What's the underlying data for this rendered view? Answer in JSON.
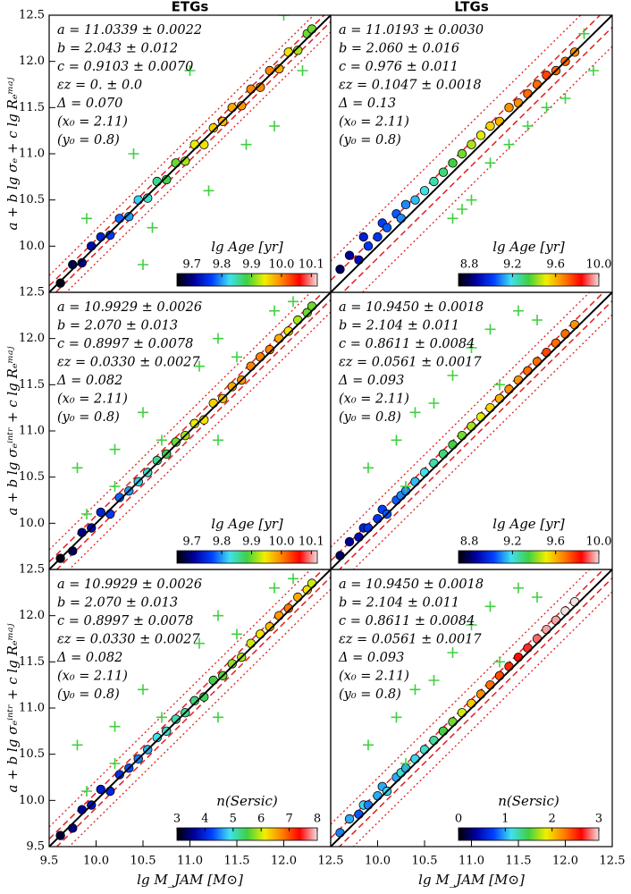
{
  "colormap": [
    "#000000",
    "#0000a0",
    "#0040ff",
    "#40e0f0",
    "#40d040",
    "#f0f000",
    "#ff8000",
    "#ff0000",
    "#f0e0e0"
  ],
  "chart_data": [
    {
      "type": "scatter",
      "title": "ETGs",
      "ylabel": "a + b lg σₑ + c lg Rₑᵐᵃʲ",
      "annotations": [
        "a = 11.0339 ± 0.0022",
        "b = 2.043 ± 0.012",
        "c = 0.9103 ± 0.0070",
        "εz = 0. ± 0.0",
        "Δ = 0.070",
        "(x₀ = 2.11)",
        "(y₀ = 0.8)"
      ],
      "delta": 0.07,
      "xlim": [
        9.5,
        12.5
      ],
      "ylim": [
        9.5,
        12.5
      ],
      "yticks": [
        {
          "value": 10,
          "label": "10.0"
        },
        10.5,
        {
          "value": 11,
          "label": "11.0"
        },
        11.5,
        {
          "value": 12,
          "label": "12.0"
        },
        12.5
      ],
      "x": [
        9.62,
        9.75,
        9.85,
        9.95,
        10.05,
        10.15,
        10.25,
        10.35,
        10.45,
        10.55,
        10.65,
        10.75,
        10.85,
        10.95,
        11.05,
        11.15,
        11.25,
        11.35,
        11.45,
        11.55,
        11.65,
        11.75,
        11.85,
        11.95,
        12.05,
        12.15,
        12.25,
        12.3
      ],
      "y": [
        9.6,
        9.8,
        9.82,
        10.0,
        10.1,
        10.12,
        10.3,
        10.32,
        10.5,
        10.52,
        10.7,
        10.72,
        10.9,
        10.92,
        11.1,
        11.1,
        11.28,
        11.35,
        11.5,
        11.52,
        11.7,
        11.72,
        11.9,
        11.92,
        12.1,
        12.12,
        12.3,
        12.35
      ],
      "c": [
        9.66,
        9.68,
        9.7,
        9.72,
        9.74,
        9.76,
        9.78,
        9.8,
        9.82,
        9.84,
        9.86,
        9.88,
        9.9,
        9.92,
        9.94,
        9.95,
        9.96,
        9.97,
        9.98,
        9.99,
        10.0,
        10.0,
        10.0,
        9.98,
        9.95,
        9.92,
        9.9,
        9.9
      ],
      "outliers_x": [
        10.4,
        10.6,
        11.0,
        11.2,
        11.6,
        11.9,
        12.2,
        10.5,
        9.9,
        12.0
      ],
      "outliers_y": [
        11.0,
        10.2,
        11.9,
        10.6,
        11.1,
        11.3,
        11.9,
        9.8,
        10.3,
        12.5
      ],
      "clabel": "lg Age [yr]",
      "clim": [
        9.65,
        10.12
      ],
      "cticks": [
        9.7,
        9.8,
        9.9,
        {
          "value": 10,
          "label": "10.0"
        },
        10.1
      ]
    },
    {
      "type": "scatter",
      "title": "LTGs",
      "annotations": [
        "a = 11.0193 ± 0.0030",
        "b = 2.060 ± 0.016",
        "c = 0.976 ± 0.011",
        "εz = 0.1047 ± 0.0018",
        "Δ = 0.13",
        "(x₀ = 2.11)",
        "(y₀ = 0.8)"
      ],
      "delta": 0.13,
      "xlim": [
        9.5,
        12.5
      ],
      "ylim": [
        9.5,
        12.5
      ],
      "x": [
        9.6,
        9.7,
        9.8,
        9.85,
        9.9,
        10.0,
        10.05,
        10.1,
        10.2,
        10.25,
        10.3,
        10.4,
        10.5,
        10.6,
        10.7,
        10.8,
        10.9,
        11.0,
        11.1,
        11.2,
        11.3,
        11.4,
        11.5,
        11.6,
        11.7,
        11.8,
        11.9,
        12.0,
        12.1
      ],
      "y": [
        9.75,
        9.9,
        9.85,
        10.1,
        10.0,
        10.1,
        10.25,
        10.2,
        10.35,
        10.3,
        10.45,
        10.5,
        10.6,
        10.7,
        10.8,
        10.9,
        11.0,
        11.1,
        11.2,
        11.3,
        11.35,
        11.5,
        11.55,
        11.65,
        11.75,
        11.85,
        11.9,
        12.0,
        12.1
      ],
      "c": [
        8.8,
        8.85,
        8.9,
        8.95,
        9.0,
        9.0,
        9.02,
        9.05,
        9.05,
        9.1,
        9.1,
        9.15,
        9.2,
        9.25,
        9.3,
        9.35,
        9.4,
        9.45,
        9.5,
        9.55,
        9.6,
        9.65,
        9.65,
        9.7,
        9.7,
        9.75,
        9.7,
        9.7,
        9.65
      ],
      "outliers_x": [
        10.8,
        11.0,
        11.2,
        11.4,
        11.6,
        11.8,
        12.0,
        12.3,
        12.2,
        10.9
      ],
      "outliers_y": [
        10.3,
        10.5,
        10.9,
        11.1,
        11.3,
        11.5,
        11.6,
        11.9,
        12.3,
        10.4
      ],
      "clabel": "lg Age [yr]",
      "clim": [
        8.7,
        10.0
      ],
      "cticks": [
        8.8,
        9.2,
        9.6,
        {
          "value": 10,
          "label": "10.0"
        }
      ]
    },
    {
      "type": "scatter",
      "ylabel": "a + b lg σₑⁱⁿᵗʳ + c lg Rₑᵐᵃʲ",
      "annotations": [
        "a = 10.9929 ± 0.0026",
        "b = 2.070 ± 0.013",
        "c = 0.8997 ± 0.0078",
        "εz = 0.0330 ± 0.0027",
        "Δ = 0.082",
        "(x₀ = 2.11)",
        "(y₀ = 0.8)"
      ],
      "delta": 0.082,
      "xlim": [
        9.5,
        12.5
      ],
      "ylim": [
        9.5,
        12.5
      ],
      "yticks": [
        {
          "value": 10,
          "label": "10.0"
        },
        10.5,
        {
          "value": 11,
          "label": "11.0"
        },
        11.5,
        {
          "value": 12,
          "label": "12.0"
        },
        12.5
      ],
      "x": [
        9.62,
        9.75,
        9.85,
        9.95,
        10.05,
        10.15,
        10.25,
        10.35,
        10.45,
        10.55,
        10.65,
        10.75,
        10.85,
        10.95,
        11.05,
        11.15,
        11.25,
        11.35,
        11.45,
        11.55,
        11.65,
        11.75,
        11.85,
        11.95,
        12.05,
        12.15,
        12.25,
        12.3
      ],
      "y": [
        9.62,
        9.7,
        9.9,
        9.95,
        10.12,
        10.1,
        10.28,
        10.35,
        10.45,
        10.55,
        10.68,
        10.75,
        10.88,
        10.95,
        11.08,
        11.12,
        11.3,
        11.35,
        11.48,
        11.55,
        11.7,
        11.8,
        11.88,
        12.0,
        12.08,
        12.2,
        12.28,
        12.35
      ],
      "c": [
        9.66,
        9.68,
        9.7,
        9.72,
        9.74,
        9.76,
        9.78,
        9.8,
        9.82,
        9.84,
        9.86,
        9.88,
        9.9,
        9.92,
        9.94,
        9.95,
        9.96,
        9.97,
        9.98,
        9.99,
        10.0,
        10.0,
        10.0,
        9.98,
        9.95,
        9.92,
        9.9,
        9.9
      ],
      "outliers_x": [
        9.9,
        10.2,
        10.5,
        10.7,
        11.1,
        11.3,
        11.5,
        10.2,
        11.9,
        9.8,
        11.3,
        12.1
      ],
      "outliers_y": [
        10.1,
        10.8,
        11.2,
        10.9,
        11.7,
        12.0,
        11.8,
        10.4,
        12.3,
        10.6,
        10.9,
        12.4
      ],
      "clabel": "lg Age [yr]",
      "clim": [
        9.65,
        10.12
      ],
      "cticks": [
        9.7,
        9.8,
        9.9,
        {
          "value": 10,
          "label": "10.0"
        },
        10.1
      ]
    },
    {
      "type": "scatter",
      "annotations": [
        "a = 10.9450 ± 0.0018",
        "b = 2.104 ± 0.011",
        "c = 0.8611 ± 0.0084",
        "εz = 0.0561 ± 0.0017",
        "Δ = 0.093",
        "(x₀ = 2.11)",
        "(y₀ = 0.8)"
      ],
      "delta": 0.093,
      "xlim": [
        9.5,
        12.5
      ],
      "ylim": [
        9.5,
        12.5
      ],
      "x": [
        9.6,
        9.7,
        9.8,
        9.85,
        9.9,
        10.0,
        10.05,
        10.1,
        10.2,
        10.25,
        10.3,
        10.4,
        10.5,
        10.6,
        10.7,
        10.8,
        10.9,
        11.0,
        11.1,
        11.2,
        11.3,
        11.4,
        11.5,
        11.6,
        11.7,
        11.8,
        11.9,
        12.0,
        12.1
      ],
      "y": [
        9.65,
        9.8,
        9.85,
        9.95,
        9.95,
        10.05,
        10.15,
        10.1,
        10.25,
        10.3,
        10.35,
        10.45,
        10.55,
        10.65,
        10.75,
        10.85,
        10.95,
        11.05,
        11.15,
        11.25,
        11.35,
        11.45,
        11.55,
        11.65,
        11.75,
        11.85,
        11.95,
        12.05,
        12.15
      ],
      "c": [
        8.8,
        8.85,
        8.9,
        8.95,
        9.0,
        9.0,
        9.02,
        9.05,
        9.05,
        9.1,
        9.1,
        9.15,
        9.2,
        9.25,
        9.3,
        9.35,
        9.4,
        9.45,
        9.5,
        9.55,
        9.6,
        9.65,
        9.65,
        9.7,
        9.7,
        9.75,
        9.7,
        9.7,
        9.65
      ],
      "outliers_x": [
        10.2,
        10.4,
        10.6,
        10.8,
        11.0,
        11.2,
        11.3,
        11.5,
        10.3,
        11.7,
        9.9
      ],
      "outliers_y": [
        10.9,
        11.2,
        11.3,
        11.6,
        11.9,
        12.1,
        11.5,
        12.3,
        10.4,
        12.2,
        10.6
      ],
      "clabel": "lg Age [yr]",
      "clim": [
        8.7,
        10.0
      ],
      "cticks": [
        8.8,
        9.2,
        9.6,
        {
          "value": 10,
          "label": "10.0"
        }
      ]
    },
    {
      "type": "scatter",
      "ylabel": "a + b lg σₑⁱⁿᵗʳ + c lg Rₑᵐᵃʲ",
      "xlabel": "lg M_JAM [M⊙]",
      "annotations": [
        "a = 10.9929 ± 0.0026",
        "b = 2.070 ± 0.013",
        "c = 0.8997 ± 0.0078",
        "εz = 0.0330 ± 0.0027",
        "Δ = 0.082",
        "(x₀ = 2.11)",
        "(y₀ = 0.8)"
      ],
      "delta": 0.082,
      "xlim": [
        9.5,
        12.5
      ],
      "ylim": [
        9.5,
        12.5
      ],
      "xticks": [
        9.5,
        {
          "value": 10,
          "label": "10.0"
        },
        10.5,
        {
          "value": 11,
          "label": "11.0"
        },
        11.5,
        {
          "value": 12,
          "label": "12.0"
        },
        12.5
      ],
      "yticks": [
        9.5,
        {
          "value": 10,
          "label": "10.0"
        },
        10.5,
        {
          "value": 11,
          "label": "11.0"
        },
        11.5,
        {
          "value": 12,
          "label": "12.0"
        },
        12.5
      ],
      "x": [
        9.62,
        9.75,
        9.85,
        9.95,
        10.05,
        10.15,
        10.25,
        10.35,
        10.45,
        10.55,
        10.65,
        10.75,
        10.85,
        10.95,
        11.05,
        11.15,
        11.25,
        11.35,
        11.45,
        11.55,
        11.65,
        11.75,
        11.85,
        11.95,
        12.05,
        12.15,
        12.25,
        12.3
      ],
      "y": [
        9.62,
        9.7,
        9.9,
        9.95,
        10.12,
        10.1,
        10.28,
        10.35,
        10.45,
        10.55,
        10.68,
        10.75,
        10.88,
        10.95,
        11.08,
        11.12,
        11.3,
        11.35,
        11.48,
        11.55,
        11.7,
        11.8,
        11.88,
        12.0,
        12.08,
        12.2,
        12.28,
        12.35
      ],
      "c": [
        3.3,
        3.5,
        3.6,
        3.8,
        3.9,
        4.0,
        4.1,
        4.3,
        4.5,
        4.7,
        4.9,
        5.0,
        5.1,
        5.2,
        5.3,
        5.4,
        5.5,
        5.6,
        5.8,
        5.9,
        6.0,
        6.2,
        6.4,
        6.6,
        6.8,
        6.5,
        6.2,
        6.0
      ],
      "outliers_x": [
        9.9,
        10.2,
        10.5,
        10.7,
        11.1,
        11.3,
        11.5,
        10.2,
        11.9,
        9.8,
        11.3,
        12.1
      ],
      "outliers_y": [
        10.1,
        10.8,
        11.2,
        10.9,
        11.7,
        12.0,
        11.8,
        10.4,
        12.3,
        10.6,
        10.9,
        12.4
      ],
      "clabel": "n(Sersic)",
      "clim": [
        3,
        8
      ],
      "cticks": [
        3,
        4,
        5,
        6,
        7,
        8
      ]
    },
    {
      "type": "scatter",
      "xlabel": "lg M_JAM [M⊙]",
      "annotations": [
        "a = 10.9450 ± 0.0018",
        "b = 2.104 ± 0.011",
        "c = 0.8611 ± 0.0084",
        "εz = 0.0561 ± 0.0017",
        "Δ = 0.093",
        "(x₀ = 2.11)",
        "(y₀ = 0.8)"
      ],
      "delta": 0.093,
      "xlim": [
        9.5,
        12.5
      ],
      "ylim": [
        9.5,
        12.5
      ],
      "xticks": [
        {
          "value": 10,
          "label": "10.0"
        },
        10.5,
        {
          "value": 11,
          "label": "11.0"
        },
        11.5,
        {
          "value": 12,
          "label": "12.0"
        },
        12.5
      ],
      "x": [
        9.6,
        9.7,
        9.8,
        9.85,
        9.9,
        10.0,
        10.05,
        10.1,
        10.2,
        10.25,
        10.3,
        10.4,
        10.5,
        10.6,
        10.7,
        10.8,
        10.9,
        11.0,
        11.1,
        11.2,
        11.3,
        11.4,
        11.5,
        11.6,
        11.7,
        11.8,
        11.9,
        12.0,
        12.1
      ],
      "y": [
        9.65,
        9.8,
        9.85,
        9.95,
        9.95,
        10.05,
        10.15,
        10.1,
        10.25,
        10.3,
        10.35,
        10.45,
        10.55,
        10.65,
        10.75,
        10.85,
        10.95,
        11.05,
        11.15,
        11.25,
        11.35,
        11.45,
        11.55,
        11.65,
        11.75,
        11.85,
        11.95,
        12.05,
        12.15
      ],
      "c": [
        0.9,
        1.0,
        0.8,
        1.1,
        0.9,
        1.0,
        1.0,
        1.1,
        1.0,
        1.2,
        1.0,
        1.1,
        1.2,
        1.3,
        1.5,
        1.6,
        1.8,
        2.0,
        2.2,
        2.3,
        2.4,
        2.5,
        2.6,
        2.7,
        2.8,
        2.9,
        2.9,
        3.0,
        3.0
      ],
      "outliers_x": [
        10.2,
        10.4,
        10.6,
        10.8,
        11.0,
        11.2,
        11.3,
        11.5,
        10.3,
        11.7,
        9.9
      ],
      "outliers_y": [
        10.9,
        11.2,
        11.3,
        11.6,
        11.9,
        12.1,
        11.5,
        12.3,
        10.4,
        12.2,
        10.6
      ],
      "clabel": "n(Sersic)",
      "clim": [
        0,
        3
      ],
      "cticks": [
        0,
        1,
        2,
        3
      ]
    }
  ]
}
